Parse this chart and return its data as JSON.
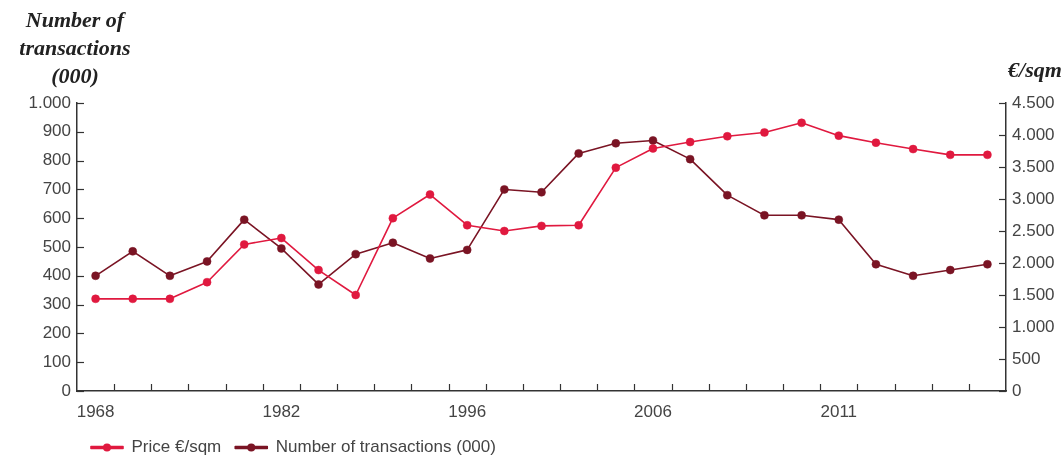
{
  "chart_data": {
    "type": "line",
    "ylabel": "Number of transactions (000)",
    "y2label": "€/sqm",
    "categories": [
      "1968",
      null,
      null,
      null,
      null,
      "1982",
      null,
      null,
      null,
      null,
      "1996",
      null,
      null,
      null,
      null,
      "2006",
      null,
      null,
      null,
      null,
      "2011",
      null,
      null,
      null,
      null
    ],
    "series": [
      {
        "name": "Price €/sqm",
        "color": "#e0193f",
        "axis": "y2",
        "values": [
          1440,
          1440,
          1440,
          1700,
          2290,
          2390,
          1890,
          1500,
          2700,
          3070,
          2590,
          2500,
          2580,
          2590,
          3490,
          3790,
          3890,
          3980,
          4040,
          4190,
          3990,
          3880,
          3780,
          3690,
          3690
        ]
      },
      {
        "name": "Number of transactions (000)",
        "color": "#7a1424",
        "axis": "y",
        "values": [
          400,
          485,
          400,
          450,
          595,
          495,
          370,
          475,
          515,
          460,
          490,
          700,
          690,
          825,
          860,
          870,
          805,
          680,
          610,
          610,
          595,
          440,
          400,
          420,
          440
        ]
      }
    ],
    "ylim": [
      0,
      1000
    ],
    "yticks": [
      0,
      100,
      200,
      300,
      400,
      500,
      600,
      700,
      800,
      900,
      {
        "value": 1000,
        "label": "1.000"
      }
    ],
    "y2lim": [
      0,
      4500
    ],
    "y2ticks": [
      0,
      500,
      {
        "value": 1000,
        "label": "1.000"
      },
      {
        "value": 1500,
        "label": "1.500"
      },
      {
        "value": 2000,
        "label": "2.000"
      },
      {
        "value": 2500,
        "label": "2.500"
      },
      {
        "value": 3000,
        "label": "3.000"
      },
      {
        "value": 3500,
        "label": "3.500"
      },
      {
        "value": 4000,
        "label": "4.000"
      },
      {
        "value": 4500,
        "label": "4.500"
      }
    ],
    "legend": "bottom left",
    "marker": "circle"
  }
}
